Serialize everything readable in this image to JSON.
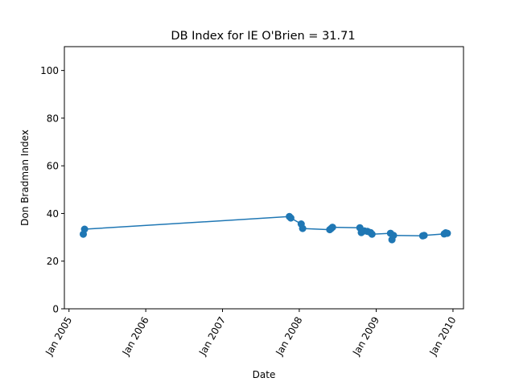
{
  "chart_data": {
    "type": "line",
    "title": "DB Index for IE O'Brien = 31.71",
    "xlabel": "Date",
    "ylabel": "Don Bradman Index",
    "x_ticks": [
      "2005-01-01",
      "2006-01-01",
      "2007-01-01",
      "2008-01-01",
      "2009-01-01",
      "2010-01-01"
    ],
    "x_tick_labels": [
      "Jan 2005",
      "Jan 2006",
      "Jan 2007",
      "Jan 2008",
      "Jan 2009",
      "Jan 2010"
    ],
    "xlim": [
      "2004-12-10",
      "2010-02-20"
    ],
    "y_ticks": [
      0,
      20,
      40,
      60,
      80,
      100
    ],
    "ylim": [
      0,
      110
    ],
    "grid": false,
    "color": "#1f77b4",
    "series": [
      {
        "x": [
          "2005-03-10",
          "2005-03-16",
          "2007-11-15",
          "2007-11-22",
          "2008-01-10",
          "2008-01-17",
          "2008-05-25",
          "2008-06-01",
          "2008-06-07",
          "2008-10-15",
          "2008-10-22",
          "2008-11-05",
          "2008-11-20",
          "2008-12-05",
          "2008-12-12",
          "2009-03-10",
          "2009-03-17",
          "2009-03-24",
          "2009-08-10",
          "2009-08-17",
          "2009-11-20",
          "2009-11-27",
          "2009-12-05"
        ],
        "y": [
          31.3,
          33.4,
          38.7,
          38.1,
          35.6,
          33.7,
          33.2,
          33.7,
          34.2,
          34.0,
          32.0,
          32.7,
          32.5,
          32.0,
          31.3,
          31.7,
          29.0,
          30.8,
          30.6,
          30.8,
          31.4,
          31.9,
          31.7
        ]
      }
    ]
  }
}
